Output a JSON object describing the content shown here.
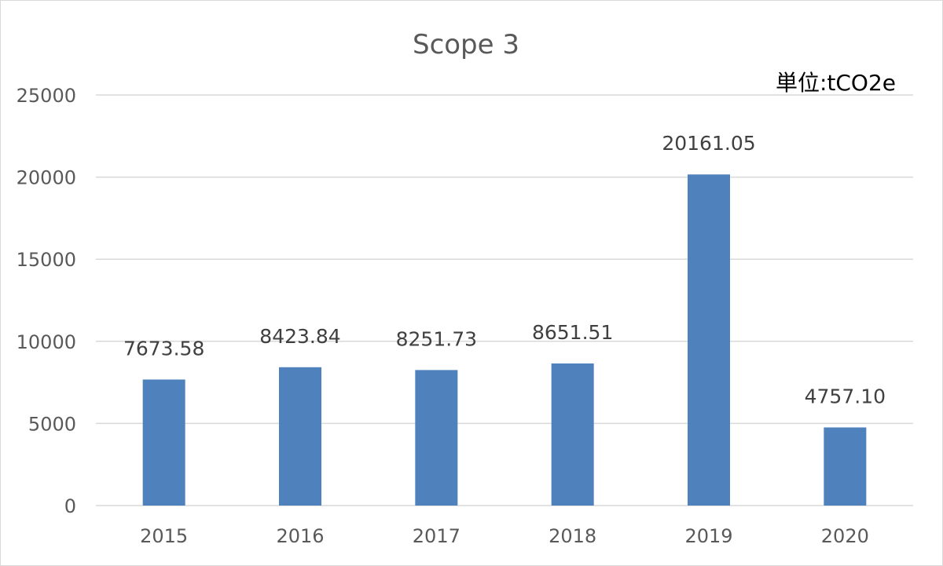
{
  "chart_data": {
    "type": "bar",
    "title": "Scope 3",
    "unit_label": "単位:tCO2e",
    "categories": [
      "2015",
      "2016",
      "2017",
      "2018",
      "2019",
      "2020"
    ],
    "values": [
      7673.58,
      8423.84,
      8251.73,
      8651.51,
      20161.05,
      4757.1
    ],
    "data_labels": [
      "7673.58",
      "8423.84",
      "8251.73",
      "8651.51",
      "20161.05",
      "4757.10"
    ],
    "ylim": [
      0,
      25000
    ],
    "yticks": [
      0,
      5000,
      10000,
      15000,
      20000,
      25000
    ],
    "ytick_labels": [
      "0",
      "5000",
      "10000",
      "15000",
      "20000",
      "25000"
    ],
    "grid": true,
    "legend": "none",
    "bar_color": "#4f81bd"
  }
}
